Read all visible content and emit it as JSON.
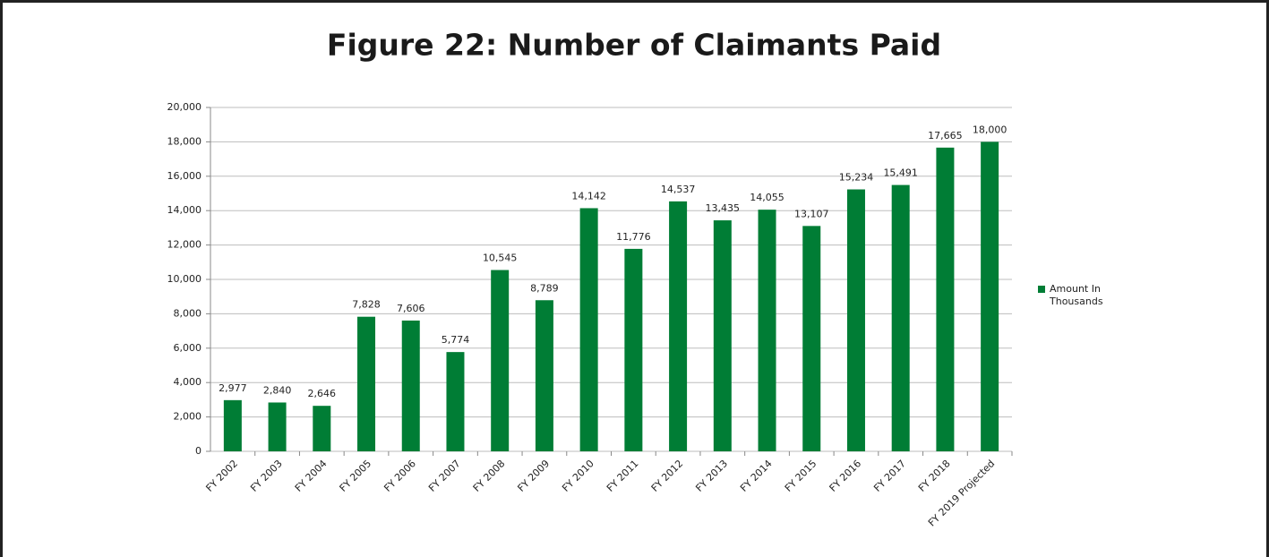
{
  "chart_data": {
    "type": "bar",
    "title": "Figure 22: Number of Claimants Paid",
    "categories": [
      "FY 2002",
      "FY 2003",
      "FY 2004",
      "FY 2005",
      "FY 2006",
      "FY 2007",
      "FY 2008",
      "FY 2009",
      "FY 2010",
      "FY 2011",
      "FY 2012",
      "FY 2013",
      "FY 2014",
      "FY 2015",
      "FY 2016",
      "FY 2017",
      "FY 2018",
      "FY 2019 Projected"
    ],
    "series": [
      {
        "name": "Amount In Thousands",
        "color": "#007d35",
        "values": [
          2977,
          2840,
          2646,
          7828,
          7606,
          5774,
          10545,
          8789,
          14142,
          11776,
          14537,
          13435,
          14055,
          13107,
          15234,
          15491,
          17665,
          18000
        ],
        "value_labels": [
          "2,977",
          "2,840",
          "2,646",
          "7,828",
          "7,606",
          "5,774",
          "10,545",
          "8,789",
          "14,142",
          "11,776",
          "14,537",
          "13,435",
          "14,055",
          "13,107",
          "15,234",
          "15,491",
          "17,665",
          "18,000"
        ]
      }
    ],
    "ylim": [
      0,
      20000
    ],
    "yticks": [
      0,
      {
        "value": 2000,
        "label": "2,000"
      },
      {
        "value": 4000,
        "label": "4,000"
      },
      {
        "value": 6000,
        "label": "6,000"
      },
      {
        "value": 8000,
        "label": "8,000"
      },
      {
        "value": 10000,
        "label": "10,000"
      },
      {
        "value": 12000,
        "label": "12,000"
      },
      {
        "value": 14000,
        "label": "14,000"
      },
      {
        "value": 16000,
        "label": "16,000"
      },
      {
        "value": 18000,
        "label": "18,000"
      },
      {
        "value": 20000,
        "label": "20,000"
      }
    ],
    "grid": true,
    "legend": "right"
  }
}
